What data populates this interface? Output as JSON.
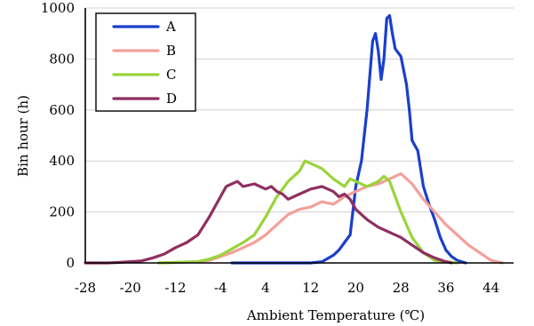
{
  "chart_data": {
    "type": "line",
    "title": "",
    "xlabel": "Ambient Temperature (℃)",
    "ylabel": "Bin hour (h)",
    "xlim": [
      -28,
      48
    ],
    "ylim": [
      0,
      1000
    ],
    "x_ticks": [
      -28,
      -20,
      -12,
      -4,
      4,
      12,
      20,
      28,
      36,
      44
    ],
    "y_ticks": [
      0,
      200,
      400,
      600,
      800,
      1000
    ],
    "grid": "horizontal",
    "legend_position": "top-left",
    "series": [
      {
        "name": "A",
        "color": "#1a3fcc",
        "points": [
          [
            -2,
            0
          ],
          [
            12,
            0
          ],
          [
            14,
            5
          ],
          [
            16,
            30
          ],
          [
            17,
            50
          ],
          [
            18,
            80
          ],
          [
            19,
            110
          ],
          [
            20,
            300
          ],
          [
            21,
            400
          ],
          [
            22,
            600
          ],
          [
            23,
            870
          ],
          [
            23.5,
            900
          ],
          [
            24,
            830
          ],
          [
            24.5,
            720
          ],
          [
            25,
            800
          ],
          [
            25.5,
            960
          ],
          [
            26,
            970
          ],
          [
            26.5,
            900
          ],
          [
            27,
            840
          ],
          [
            28,
            810
          ],
          [
            29,
            700
          ],
          [
            29.5,
            600
          ],
          [
            30,
            480
          ],
          [
            31,
            440
          ],
          [
            32,
            300
          ],
          [
            33,
            230
          ],
          [
            34,
            170
          ],
          [
            35,
            100
          ],
          [
            36,
            50
          ],
          [
            37,
            25
          ],
          [
            38,
            10
          ],
          [
            39.5,
            0
          ]
        ]
      },
      {
        "name": "B",
        "color": "#f4a09a",
        "points": [
          [
            -15,
            0
          ],
          [
            -8,
            5
          ],
          [
            -6,
            10
          ],
          [
            -4,
            25
          ],
          [
            -2,
            40
          ],
          [
            0,
            60
          ],
          [
            2,
            80
          ],
          [
            4,
            110
          ],
          [
            6,
            150
          ],
          [
            8,
            190
          ],
          [
            10,
            210
          ],
          [
            12,
            220
          ],
          [
            14,
            240
          ],
          [
            16,
            230
          ],
          [
            18,
            260
          ],
          [
            20,
            280
          ],
          [
            22,
            300
          ],
          [
            24,
            310
          ],
          [
            26,
            330
          ],
          [
            28,
            350
          ],
          [
            30,
            310
          ],
          [
            32,
            250
          ],
          [
            34,
            200
          ],
          [
            36,
            150
          ],
          [
            38,
            110
          ],
          [
            40,
            70
          ],
          [
            42,
            40
          ],
          [
            44,
            10
          ],
          [
            46,
            0
          ]
        ]
      },
      {
        "name": "C",
        "color": "#99d43c",
        "points": [
          [
            -15,
            0
          ],
          [
            -8,
            5
          ],
          [
            -6,
            15
          ],
          [
            -4,
            30
          ],
          [
            -2,
            55
          ],
          [
            0,
            80
          ],
          [
            2,
            110
          ],
          [
            4,
            180
          ],
          [
            6,
            260
          ],
          [
            8,
            320
          ],
          [
            10,
            360
          ],
          [
            11,
            400
          ],
          [
            12,
            390
          ],
          [
            13,
            380
          ],
          [
            14,
            370
          ],
          [
            16,
            330
          ],
          [
            18,
            300
          ],
          [
            19,
            330
          ],
          [
            20,
            320
          ],
          [
            22,
            300
          ],
          [
            24,
            320
          ],
          [
            25,
            340
          ],
          [
            26,
            320
          ],
          [
            28,
            200
          ],
          [
            30,
            100
          ],
          [
            32,
            40
          ],
          [
            34,
            10
          ],
          [
            36,
            5
          ],
          [
            38,
            0
          ]
        ]
      },
      {
        "name": "D",
        "color": "#8f2f62",
        "points": [
          [
            -28,
            0
          ],
          [
            -24,
            0
          ],
          [
            -22,
            2
          ],
          [
            -20,
            5
          ],
          [
            -18,
            8
          ],
          [
            -16,
            20
          ],
          [
            -14,
            35
          ],
          [
            -12,
            60
          ],
          [
            -10,
            80
          ],
          [
            -8,
            110
          ],
          [
            -6,
            180
          ],
          [
            -4,
            260
          ],
          [
            -3,
            300
          ],
          [
            -2,
            310
          ],
          [
            -1,
            320
          ],
          [
            0,
            300
          ],
          [
            2,
            310
          ],
          [
            4,
            290
          ],
          [
            5,
            300
          ],
          [
            6,
            280
          ],
          [
            7,
            270
          ],
          [
            8,
            250
          ],
          [
            10,
            270
          ],
          [
            12,
            290
          ],
          [
            14,
            300
          ],
          [
            16,
            280
          ],
          [
            17,
            260
          ],
          [
            18,
            270
          ],
          [
            19,
            250
          ],
          [
            20,
            210
          ],
          [
            22,
            170
          ],
          [
            24,
            140
          ],
          [
            26,
            120
          ],
          [
            28,
            100
          ],
          [
            30,
            70
          ],
          [
            32,
            40
          ],
          [
            34,
            20
          ],
          [
            36,
            5
          ],
          [
            37,
            0
          ]
        ]
      }
    ]
  }
}
